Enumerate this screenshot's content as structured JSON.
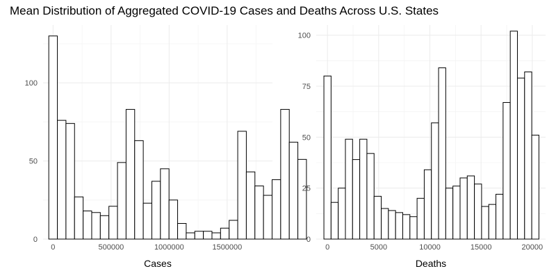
{
  "title": "Mean Distribution of Aggregated COVID-19 Cases and Deaths Across U.S. States",
  "chart_data": [
    {
      "type": "bar",
      "xlabel": "Cases",
      "ylabel": "",
      "bin_start": -37000,
      "bin_width": 74000,
      "xlim": [
        -86000,
        1890000
      ],
      "ylim": [
        0,
        137
      ],
      "x_ticks": [
        {
          "value": 0,
          "label": "0"
        },
        {
          "value": 500000,
          "label": "500000"
        },
        {
          "value": 1000000,
          "label": "1000000"
        },
        {
          "value": 1500000,
          "label": "1500000"
        }
      ],
      "y_ticks": [
        {
          "value": 0,
          "label": "0"
        },
        {
          "value": 50,
          "label": "50"
        },
        {
          "value": 100,
          "label": "100"
        }
      ],
      "values": [
        130,
        76,
        74,
        27,
        18,
        17,
        15,
        21,
        49,
        83,
        63,
        23,
        37,
        45,
        25,
        10,
        4,
        5,
        5,
        4,
        7,
        12,
        69,
        43,
        34,
        28,
        38,
        83,
        62,
        51
      ],
      "grid": true,
      "legend": "none"
    },
    {
      "type": "bar",
      "xlabel": "Deaths",
      "ylabel": "",
      "bin_start": -350,
      "bin_width": 700,
      "xlim": [
        -1100,
        21300
      ],
      "ylim": [
        0,
        105
      ],
      "x_ticks": [
        {
          "value": 0,
          "label": "0"
        },
        {
          "value": 5000,
          "label": "5000"
        },
        {
          "value": 10000,
          "label": "10000"
        },
        {
          "value": 15000,
          "label": "15000"
        },
        {
          "value": 20000,
          "label": "20000"
        }
      ],
      "y_ticks": [
        {
          "value": 0,
          "label": "0"
        },
        {
          "value": 25,
          "label": "25"
        },
        {
          "value": 50,
          "label": "50"
        },
        {
          "value": 75,
          "label": "75"
        },
        {
          "value": 100,
          "label": "100"
        }
      ],
      "values": [
        80,
        18,
        25,
        49,
        39,
        49,
        42,
        21,
        15,
        14,
        13,
        12,
        11,
        20,
        34,
        57,
        84,
        25,
        26,
        30,
        31,
        27,
        16,
        17,
        22,
        67,
        102,
        79,
        82,
        51
      ],
      "grid": true,
      "legend": "none"
    }
  ]
}
